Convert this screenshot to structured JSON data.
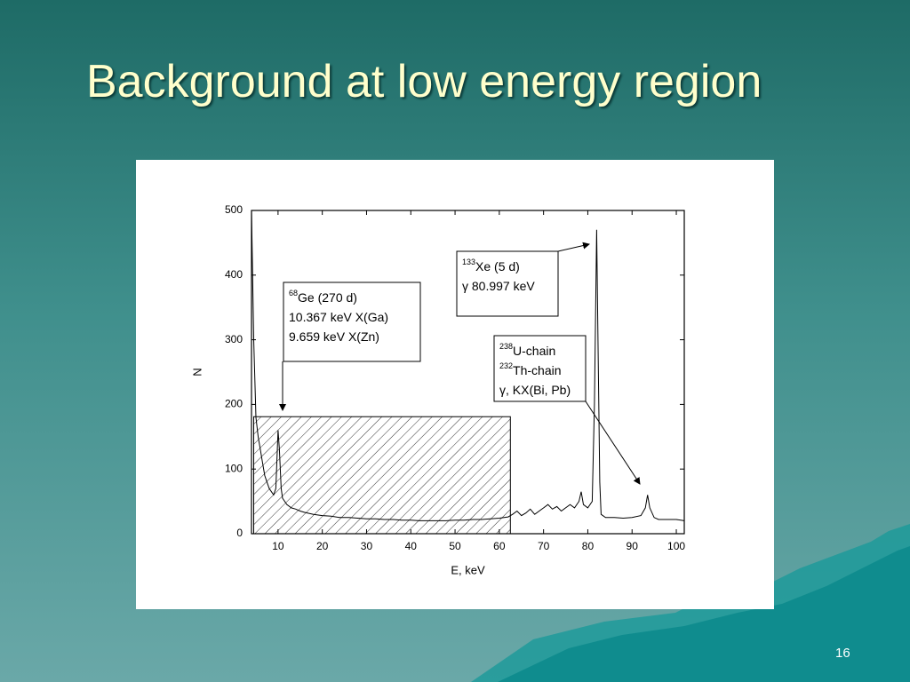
{
  "slide_title": "Background at low energy region",
  "page_number": "16",
  "chart_data": {
    "type": "line",
    "x_label": "E, keV",
    "y_label": "N",
    "xlim": [
      4,
      101.8
    ],
    "ylim": [
      0,
      500
    ],
    "xticks": [
      10,
      20,
      30,
      40,
      50,
      60,
      70,
      80,
      90,
      100
    ],
    "yticks": [
      0,
      100,
      200,
      300,
      400,
      500
    ],
    "color": "#000000",
    "x": [
      4,
      4.5,
      5,
      5.5,
      6,
      6.5,
      7,
      7.5,
      8,
      8.5,
      9,
      9.5,
      10,
      10.3,
      10.7,
      11,
      12,
      13,
      14,
      15,
      16,
      18,
      20,
      22,
      24,
      26,
      28,
      30,
      32,
      34,
      36,
      38,
      40,
      42,
      44,
      46,
      48,
      50,
      52,
      54,
      56,
      58,
      60,
      62,
      63,
      64,
      65,
      66,
      67,
      68,
      69,
      70,
      71,
      72,
      73,
      74,
      75,
      76,
      77,
      78,
      78.5,
      79,
      80,
      81,
      81.5,
      82,
      82.3,
      82.7,
      83,
      84,
      86,
      88,
      90,
      92,
      93,
      93.5,
      94,
      95,
      96,
      98,
      100,
      101.8
    ],
    "values": [
      500,
      300,
      180,
      150,
      130,
      110,
      90,
      80,
      70,
      65,
      60,
      70,
      160,
      130,
      70,
      55,
      45,
      40,
      38,
      35,
      33,
      30,
      28,
      27,
      25,
      25,
      24,
      23,
      23,
      22,
      22,
      21,
      21,
      20,
      20,
      20,
      20,
      21,
      21,
      22,
      22,
      23,
      24,
      26,
      30,
      35,
      28,
      32,
      38,
      30,
      35,
      40,
      45,
      38,
      42,
      35,
      40,
      45,
      40,
      50,
      65,
      45,
      40,
      50,
      200,
      470,
      300,
      80,
      30,
      25,
      25,
      24,
      25,
      28,
      40,
      60,
      40,
      25,
      22,
      22,
      22,
      20
    ],
    "region": {
      "x": [
        4.5,
        62.5
      ],
      "y": [
        0,
        181
      ]
    },
    "annotations": [
      {
        "lines": [
          {
            "sup": "68",
            "text": "Ge (270 d)"
          },
          {
            "text": "10.367 keV X(Ga)"
          },
          {
            "text": "9.659 keV X(Zn)"
          }
        ]
      },
      {
        "lines": [
          {
            "sup": "133",
            "text": "Xe (5 d)"
          },
          {
            "text": "γ 80.997 keV"
          }
        ]
      },
      {
        "lines": [
          {
            "sup": "238",
            "text": "U-chain"
          },
          {
            "sup": "232",
            "text": "Th-chain"
          },
          {
            "text": "γ, KX(Bi, Pb)"
          }
        ]
      }
    ]
  }
}
